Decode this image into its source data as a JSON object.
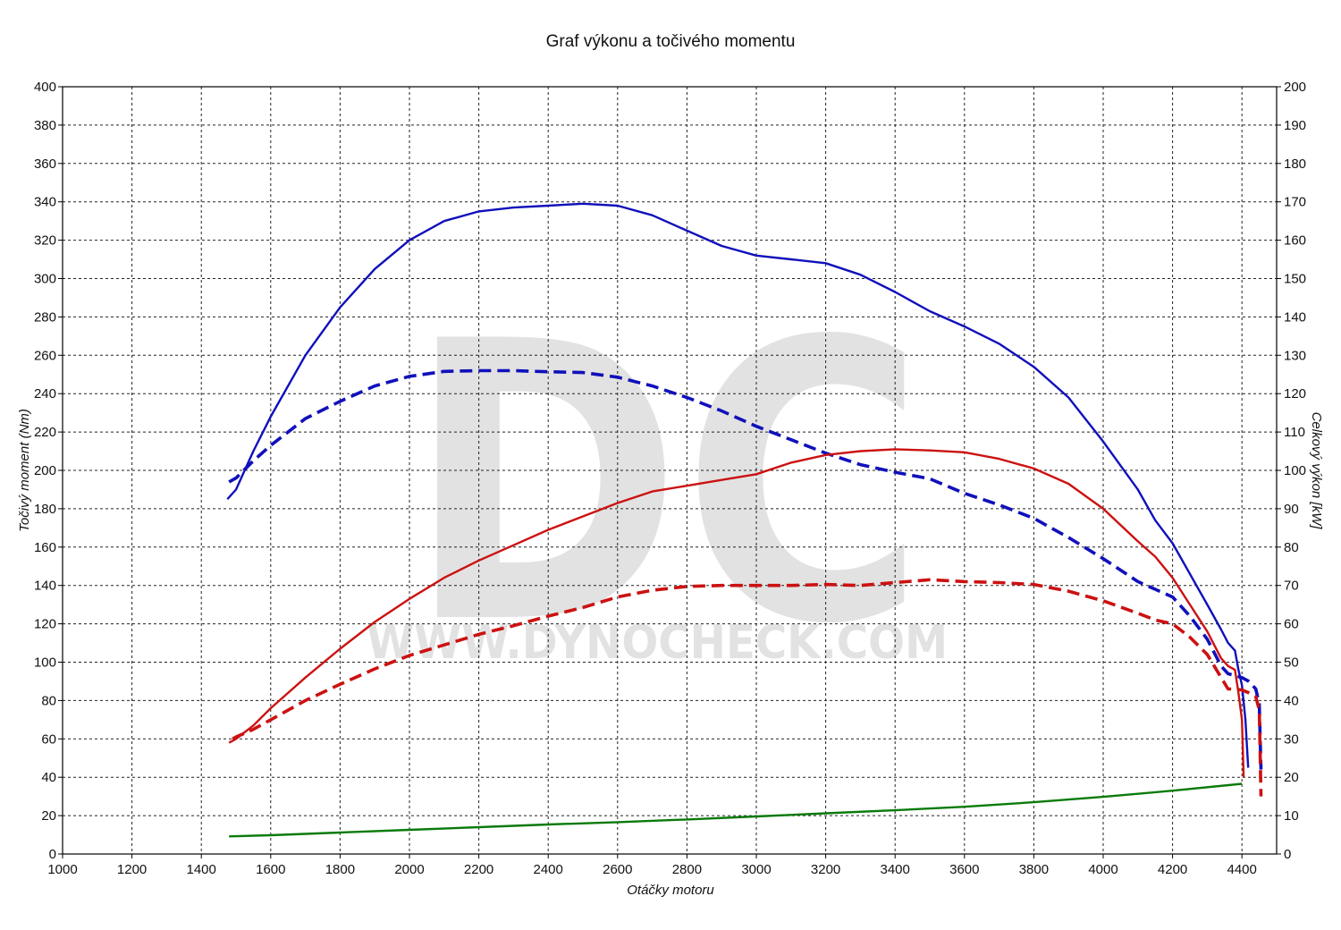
{
  "chart_data": {
    "type": "line",
    "title": "Graf výkonu a točivého momentu",
    "xlabel": "Otáčky motoru",
    "ylabel_left": "Točivý moment (Nm)",
    "ylabel_right": "Celkový výkon [kW]",
    "xlim": [
      1000,
      4500
    ],
    "ylim_left": [
      0,
      400
    ],
    "ylim_right": [
      0,
      200
    ],
    "x_ticks": [
      1000,
      1200,
      1400,
      1600,
      1800,
      2000,
      2200,
      2400,
      2600,
      2800,
      3000,
      3200,
      3400,
      3600,
      3800,
      4000,
      4200,
      4400
    ],
    "y_ticks_left": [
      0,
      20,
      40,
      60,
      80,
      100,
      120,
      140,
      160,
      180,
      200,
      220,
      240,
      260,
      280,
      300,
      320,
      340,
      360,
      380,
      400
    ],
    "y_ticks_right": [
      0,
      10,
      20,
      30,
      40,
      50,
      60,
      70,
      80,
      90,
      100,
      110,
      120,
      130,
      140,
      150,
      160,
      170,
      180,
      190,
      200
    ],
    "grid": true,
    "watermark": {
      "logo": "DC",
      "url": "WWW.DYNOCHECK.COM"
    },
    "series": [
      {
        "axis": "left",
        "color": "#1010bb",
        "dash": "solid",
        "points": [
          [
            1475,
            185
          ],
          [
            1500,
            190
          ],
          [
            1550,
            210
          ],
          [
            1600,
            228
          ],
          [
            1700,
            260
          ],
          [
            1800,
            285
          ],
          [
            1900,
            305
          ],
          [
            2000,
            320
          ],
          [
            2100,
            330
          ],
          [
            2200,
            335
          ],
          [
            2300,
            337
          ],
          [
            2400,
            338
          ],
          [
            2500,
            339
          ],
          [
            2600,
            338
          ],
          [
            2700,
            333
          ],
          [
            2800,
            325
          ],
          [
            2900,
            317
          ],
          [
            3000,
            312
          ],
          [
            3100,
            310
          ],
          [
            3200,
            308
          ],
          [
            3300,
            302
          ],
          [
            3400,
            293
          ],
          [
            3500,
            283
          ],
          [
            3600,
            275
          ],
          [
            3700,
            266
          ],
          [
            3800,
            254
          ],
          [
            3900,
            238
          ],
          [
            4000,
            215
          ],
          [
            4100,
            190
          ],
          [
            4150,
            174
          ],
          [
            4200,
            162
          ],
          [
            4250,
            146
          ],
          [
            4300,
            130
          ],
          [
            4340,
            117
          ],
          [
            4360,
            110
          ],
          [
            4380,
            106
          ],
          [
            4390,
            96
          ],
          [
            4400,
            88
          ],
          [
            4410,
            70
          ],
          [
            4418,
            45
          ]
        ]
      },
      {
        "axis": "right",
        "color": "#1010bb",
        "dash": "dashed",
        "points": [
          [
            1480,
            97
          ],
          [
            1500,
            98
          ],
          [
            1550,
            102.5
          ],
          [
            1600,
            106.5
          ],
          [
            1700,
            113.5
          ],
          [
            1800,
            118
          ],
          [
            1900,
            122
          ],
          [
            2000,
            124.5
          ],
          [
            2100,
            125.8
          ],
          [
            2200,
            126
          ],
          [
            2300,
            126
          ],
          [
            2400,
            125.7
          ],
          [
            2500,
            125.5
          ],
          [
            2600,
            124.3
          ],
          [
            2700,
            122
          ],
          [
            2800,
            119
          ],
          [
            2900,
            115.5
          ],
          [
            3000,
            111.5
          ],
          [
            3100,
            108
          ],
          [
            3200,
            104.5
          ],
          [
            3300,
            101.5
          ],
          [
            3400,
            99.5
          ],
          [
            3500,
            97.8
          ],
          [
            3600,
            94
          ],
          [
            3700,
            91
          ],
          [
            3800,
            87.5
          ],
          [
            3900,
            82.5
          ],
          [
            4000,
            77
          ],
          [
            4100,
            71
          ],
          [
            4150,
            69
          ],
          [
            4200,
            67
          ],
          [
            4250,
            62
          ],
          [
            4300,
            56
          ],
          [
            4340,
            49
          ],
          [
            4360,
            47
          ],
          [
            4380,
            46.5
          ],
          [
            4400,
            46
          ],
          [
            4420,
            45
          ],
          [
            4440,
            43
          ],
          [
            4450,
            39
          ],
          [
            4455,
            22
          ]
        ]
      },
      {
        "axis": "right",
        "color": "#cc1111",
        "dash": "solid",
        "points": [
          [
            1480,
            29
          ],
          [
            1500,
            30
          ],
          [
            1550,
            33.5
          ],
          [
            1600,
            38
          ],
          [
            1700,
            46
          ],
          [
            1800,
            53.5
          ],
          [
            1900,
            60.5
          ],
          [
            2000,
            66.5
          ],
          [
            2100,
            72
          ],
          [
            2200,
            76.5
          ],
          [
            2300,
            80.5
          ],
          [
            2400,
            84.5
          ],
          [
            2500,
            88
          ],
          [
            2600,
            91.5
          ],
          [
            2700,
            94.5
          ],
          [
            2800,
            96
          ],
          [
            2900,
            97.5
          ],
          [
            3000,
            99
          ],
          [
            3100,
            102
          ],
          [
            3200,
            104
          ],
          [
            3300,
            105
          ],
          [
            3400,
            105.5
          ],
          [
            3500,
            105.2
          ],
          [
            3600,
            104.7
          ],
          [
            3700,
            103
          ],
          [
            3800,
            100.5
          ],
          [
            3900,
            96.5
          ],
          [
            4000,
            90
          ],
          [
            4100,
            81.5
          ],
          [
            4150,
            77.5
          ],
          [
            4200,
            72
          ],
          [
            4250,
            65
          ],
          [
            4300,
            58
          ],
          [
            4340,
            51
          ],
          [
            4360,
            49
          ],
          [
            4380,
            48
          ],
          [
            4390,
            42
          ],
          [
            4400,
            35
          ],
          [
            4405,
            20
          ]
        ]
      },
      {
        "axis": "left",
        "color": "#cc1111",
        "dash": "dashed",
        "points": [
          [
            1490,
            60
          ],
          [
            1500,
            61
          ],
          [
            1550,
            65
          ],
          [
            1600,
            70
          ],
          [
            1700,
            80
          ],
          [
            1800,
            88.5
          ],
          [
            1900,
            96.5
          ],
          [
            2000,
            103.5
          ],
          [
            2100,
            109
          ],
          [
            2200,
            114.5
          ],
          [
            2300,
            119
          ],
          [
            2400,
            124
          ],
          [
            2500,
            128.5
          ],
          [
            2600,
            134
          ],
          [
            2700,
            137.5
          ],
          [
            2800,
            139.5
          ],
          [
            2900,
            140
          ],
          [
            3000,
            140
          ],
          [
            3100,
            140
          ],
          [
            3200,
            140.5
          ],
          [
            3300,
            140
          ],
          [
            3400,
            141.5
          ],
          [
            3500,
            143
          ],
          [
            3600,
            142
          ],
          [
            3700,
            141.5
          ],
          [
            3800,
            140.5
          ],
          [
            3900,
            137
          ],
          [
            4000,
            132
          ],
          [
            4100,
            125.5
          ],
          [
            4150,
            122
          ],
          [
            4200,
            120
          ],
          [
            4250,
            113
          ],
          [
            4300,
            104
          ],
          [
            4340,
            92
          ],
          [
            4360,
            86
          ],
          [
            4380,
            86
          ],
          [
            4400,
            85.5
          ],
          [
            4420,
            84
          ],
          [
            4440,
            82
          ],
          [
            4450,
            75
          ],
          [
            4455,
            30
          ]
        ]
      },
      {
        "axis": "right",
        "color": "#0a7a0a",
        "dash": "solid",
        "points": [
          [
            1480,
            4.6
          ],
          [
            1600,
            4.9
          ],
          [
            1800,
            5.6
          ],
          [
            2000,
            6.3
          ],
          [
            2200,
            7
          ],
          [
            2400,
            7.7
          ],
          [
            2600,
            8.3
          ],
          [
            2800,
            9
          ],
          [
            3000,
            9.8
          ],
          [
            3200,
            10.6
          ],
          [
            3400,
            11.4
          ],
          [
            3600,
            12.3
          ],
          [
            3800,
            13.5
          ],
          [
            4000,
            14.9
          ],
          [
            4200,
            16.5
          ],
          [
            4400,
            18.3
          ]
        ]
      }
    ]
  }
}
